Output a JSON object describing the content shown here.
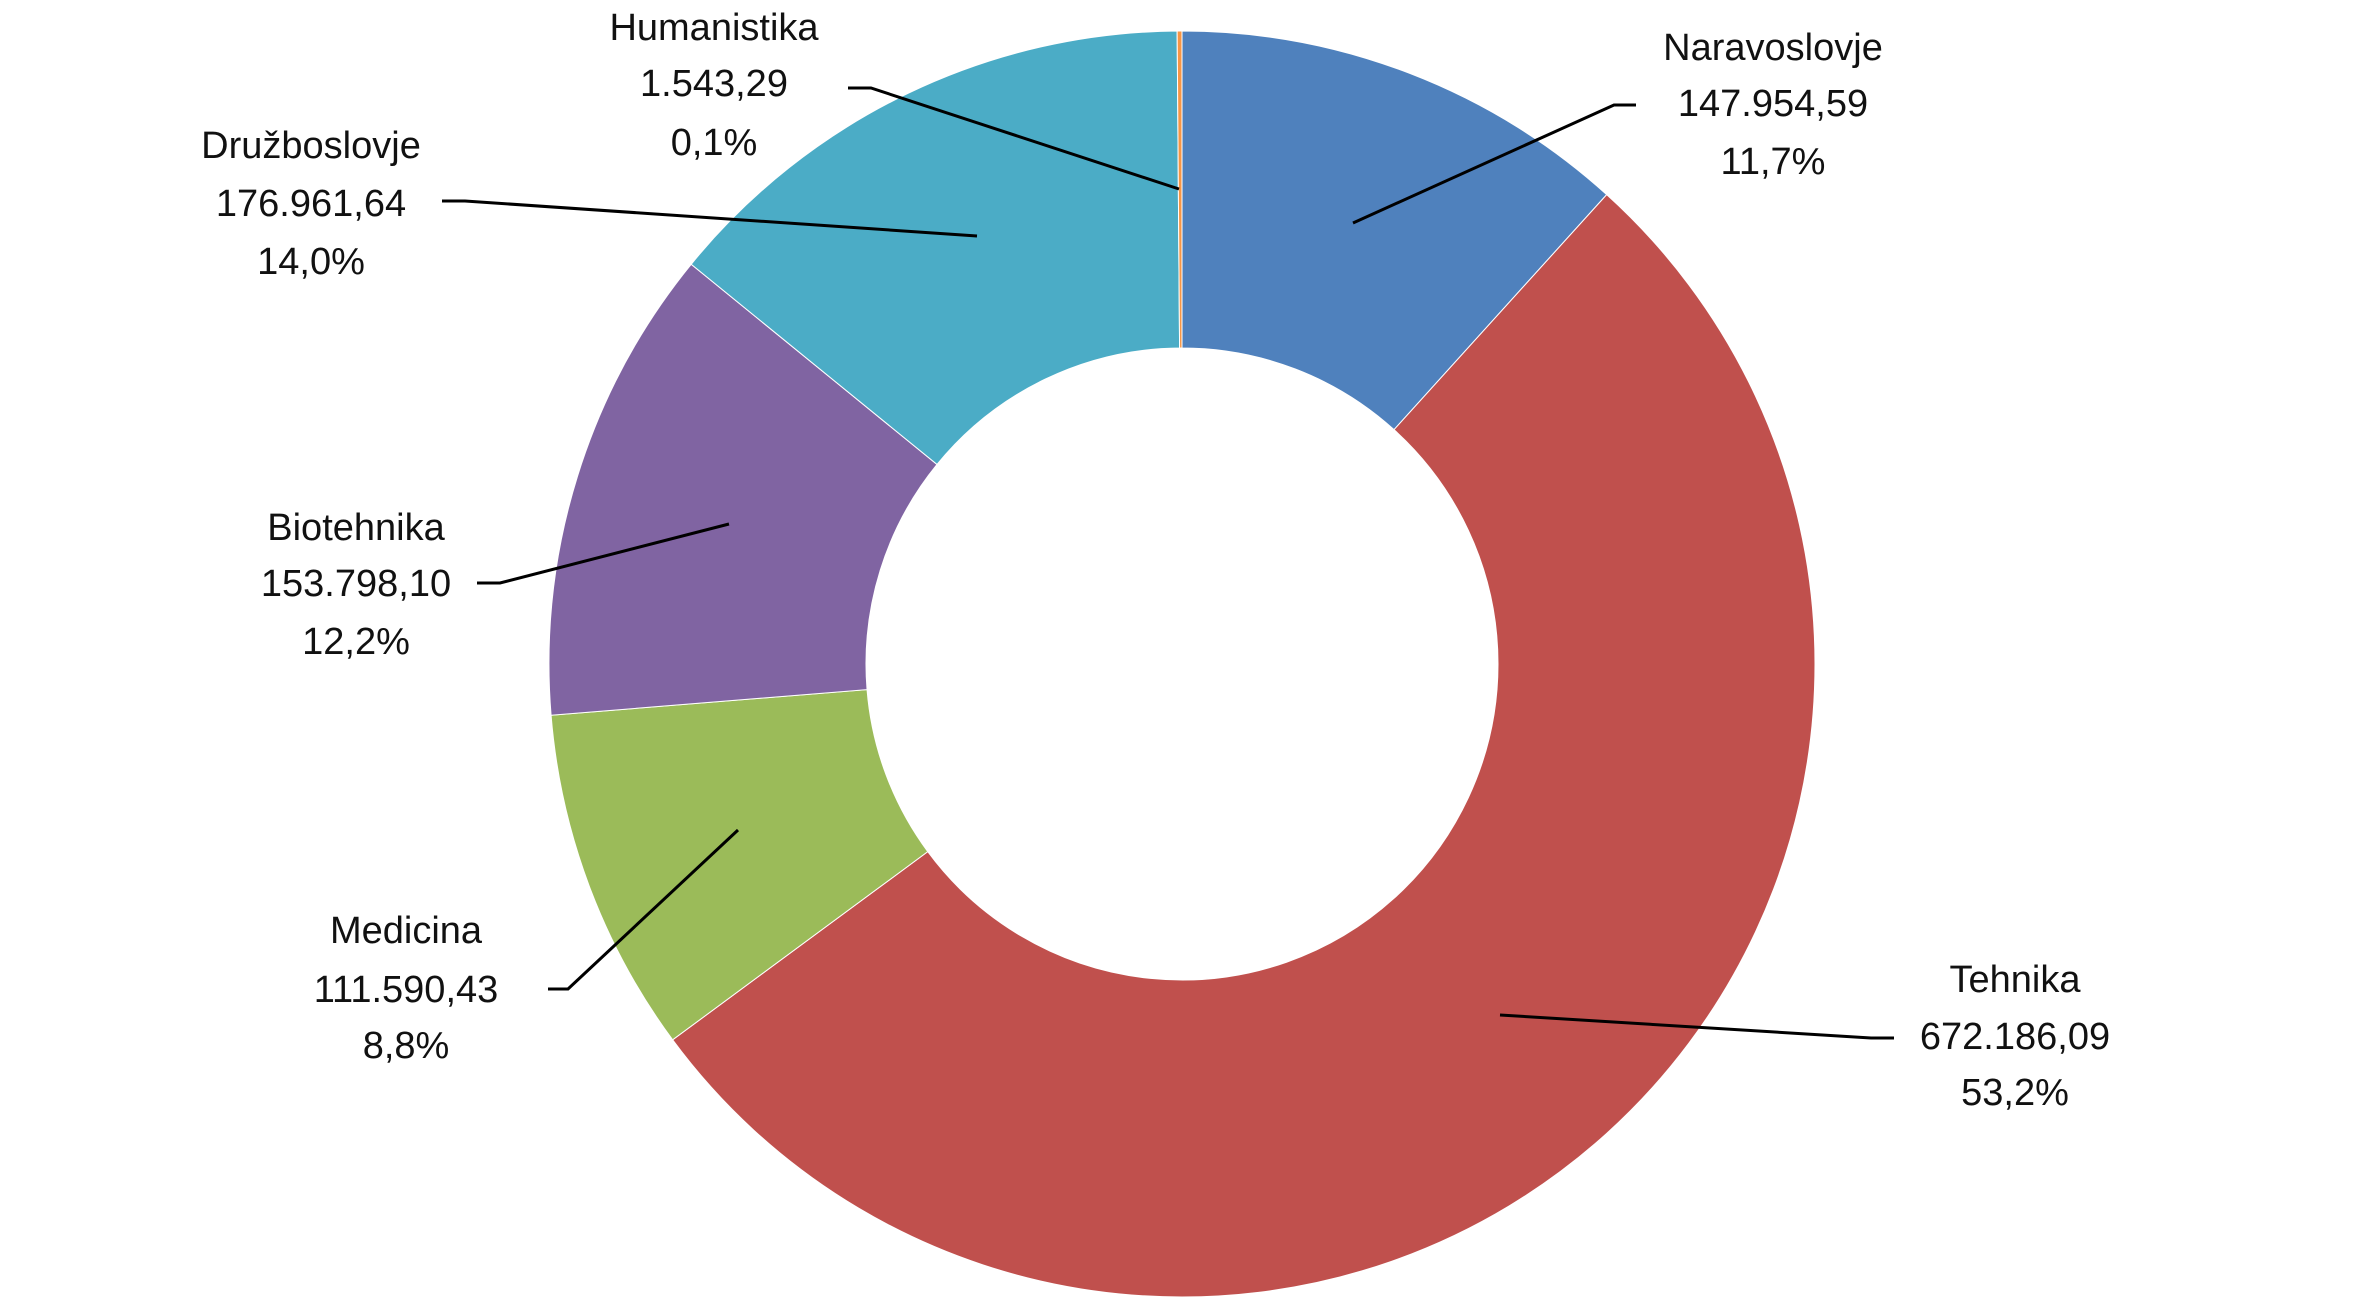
{
  "chart_data": {
    "type": "donut",
    "categories": [
      "Naravoslovje",
      "Tehnika",
      "Medicina",
      "Biotehnika",
      "Družboslovje",
      "Humanistika"
    ],
    "values": [
      147954.59,
      672186.09,
      111590.43,
      153798.1,
      176961.64,
      1543.29
    ],
    "value_labels": [
      "147.954,59",
      "672.186,09",
      "111.590,43",
      "153.798,10",
      "176.961,64",
      "1.543,29"
    ],
    "percents": [
      11.7,
      53.2,
      8.8,
      12.2,
      14.0,
      0.1
    ],
    "percent_labels": [
      "11,7%",
      "53,2%",
      "8,8%",
      "12,2%",
      "14,0%",
      "0,1%"
    ],
    "colors": [
      "#4f81bd",
      "#c0504d",
      "#9bbb59",
      "#8064a2",
      "#4bacc6",
      "#f79646"
    ]
  }
}
